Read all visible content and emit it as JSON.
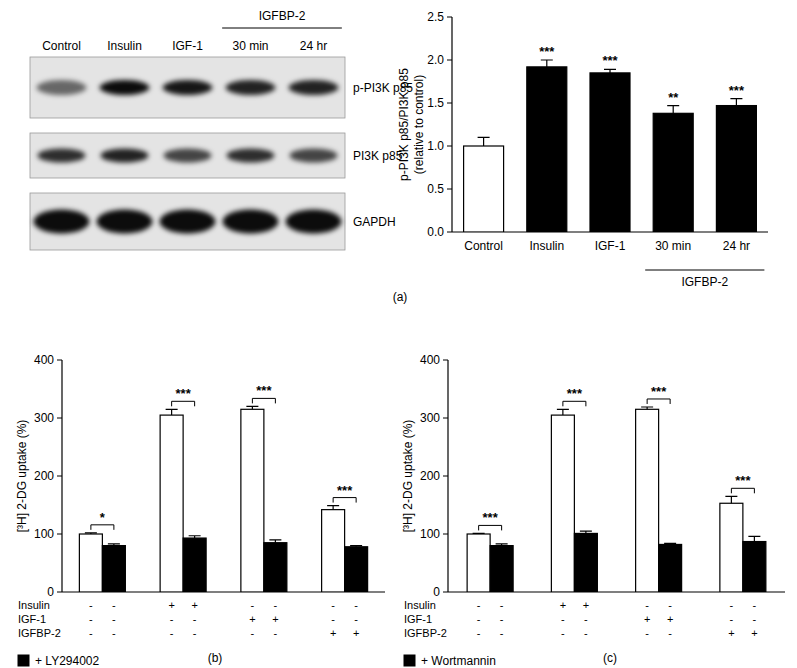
{
  "chart_data": [
    {
      "type": "bar",
      "categories": [
        "Control",
        "Insulin",
        "IGF-1",
        "30 min",
        "24 hr"
      ],
      "values": [
        1.0,
        1.92,
        1.85,
        1.38,
        1.47
      ],
      "errors": [
        0.1,
        0.08,
        0.04,
        0.09,
        0.08
      ],
      "colors": [
        "#ffffff",
        "#000000",
        "#000000",
        "#000000",
        "#000000"
      ],
      "significance": [
        null,
        "***",
        "***",
        "**",
        "***"
      ],
      "groups": [
        {
          "label": "IGFBP-2",
          "members": [
            "30 min",
            "24 hr"
          ]
        }
      ],
      "ylabel": [
        "p-PI3K p85/PI3K p85",
        "(relative to control)"
      ],
      "ylim": [
        0,
        2.5
      ],
      "yticks": [
        {
          "value": 0,
          "label": "0.0"
        },
        {
          "value": 0.5,
          "label": "0.5"
        },
        {
          "value": 1,
          "label": "1.0"
        },
        {
          "value": 1.5,
          "label": "1.5"
        },
        {
          "value": 2,
          "label": "2.0"
        },
        {
          "value": 2.5,
          "label": "2.5"
        }
      ],
      "grid": false
    },
    {
      "type": "bar",
      "categories": [
        null,
        null,
        null,
        null
      ],
      "series": [
        {
          "color": "#ffffff",
          "values": [
            100,
            305,
            315,
            142
          ],
          "errors": [
            2,
            10,
            5,
            7
          ]
        },
        {
          "name": "+ LY294002",
          "color": "#000000",
          "values": [
            80,
            93,
            85,
            78
          ],
          "errors": [
            3,
            4,
            5,
            2
          ]
        }
      ],
      "significance": [
        "*",
        "***",
        "***",
        "***"
      ],
      "treatments": [
        {
          "label": "Insulin",
          "signs": [
            "-",
            "-",
            "+",
            "+",
            "-",
            "-",
            "-",
            "-"
          ]
        },
        {
          "label": "IGF-1",
          "signs": [
            "-",
            "-",
            "-",
            "-",
            "+",
            "+",
            "-",
            "-"
          ]
        },
        {
          "label": "IGFBP-2",
          "signs": [
            "-",
            "-",
            "-",
            "-",
            "-",
            "-",
            "+",
            "+"
          ]
        }
      ],
      "ylabel": "[³H] 2-DG uptake (%)",
      "ylim": [
        0,
        400
      ],
      "yticks": [
        0,
        100,
        200,
        300,
        400
      ],
      "grid": false,
      "legend": "bottom left"
    },
    {
      "type": "bar",
      "categories": [
        null,
        null,
        null,
        null
      ],
      "series": [
        {
          "color": "#ffffff",
          "values": [
            100,
            305,
            315,
            153
          ],
          "errors": [
            1,
            10,
            4,
            12
          ]
        },
        {
          "name": "+ Wortmannin",
          "color": "#000000",
          "values": [
            80,
            101,
            82,
            87
          ],
          "errors": [
            3,
            4,
            2,
            9
          ]
        }
      ],
      "significance": [
        "***",
        "***",
        "***",
        "***"
      ],
      "treatments": [
        {
          "label": "Insulin",
          "signs": [
            "-",
            "-",
            "+",
            "+",
            "-",
            "-",
            "-",
            "-"
          ]
        },
        {
          "label": "IGF-1",
          "signs": [
            "-",
            "-",
            "-",
            "-",
            "+",
            "+",
            "-",
            "-"
          ]
        },
        {
          "label": "IGFBP-2",
          "signs": [
            "-",
            "-",
            "-",
            "-",
            "-",
            "-",
            "+",
            "+"
          ]
        }
      ],
      "ylabel": "[³H] 2-DG uptake (%)",
      "ylim": [
        0,
        400
      ],
      "yticks": [
        0,
        100,
        200,
        300,
        400
      ],
      "grid": false,
      "legend": "bottom left"
    }
  ],
  "blot": {
    "lanes": [
      "Control",
      "Insulin",
      "IGF-1",
      "30 min",
      "24 hr"
    ],
    "group": {
      "label": "IGFBP-2",
      "members": [
        "30 min",
        "24 hr"
      ]
    },
    "bands": [
      "p-PI3K p85",
      "PI3K p85",
      "GAPDH"
    ]
  },
  "panel_labels": [
    "(a)",
    "(b)",
    "(c)"
  ]
}
